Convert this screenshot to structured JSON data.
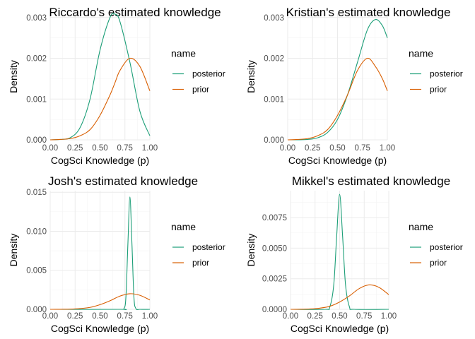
{
  "colors": {
    "posterior": "#1b9e77",
    "prior": "#d95f02"
  },
  "chart_data": [
    {
      "type": "line",
      "title": "Riccardo's estimated knowledge",
      "xlabel": "CogSci Knowledge (p)",
      "ylabel": "Density",
      "xlim": [
        0,
        1
      ],
      "ylim": [
        0,
        0.0031
      ],
      "xticks": [
        0,
        0.25,
        0.5,
        0.75,
        1
      ],
      "xtick_labels": [
        "0.00",
        "0.25",
        "0.50",
        "0.75",
        "1.00"
      ],
      "yticks": [
        0,
        0.001,
        0.002,
        0.003
      ],
      "ytick_labels": [
        "0.000",
        "0.001",
        "0.002",
        "0.003"
      ],
      "grid": true,
      "legend": {
        "title": "name",
        "position": "right",
        "entries": [
          "posterior",
          "prior"
        ]
      },
      "x": [
        0,
        0.1,
        0.2,
        0.3,
        0.4,
        0.5,
        0.6,
        0.65,
        0.7,
        0.8,
        0.9,
        1.0
      ],
      "series": [
        {
          "name": "posterior",
          "values": [
            0,
            1e-05,
            5e-05,
            0.0003,
            0.001,
            0.0022,
            0.003,
            0.00308,
            0.0029,
            0.0019,
            0.0007,
            0.0001
          ]
        },
        {
          "name": "prior",
          "values": [
            0,
            1e-05,
            3e-05,
            0.0001,
            0.00025,
            0.0006,
            0.0011,
            0.0014,
            0.0017,
            0.002,
            0.0018,
            0.0012
          ]
        }
      ]
    },
    {
      "type": "line",
      "title": "Kristian's estimated knowledge",
      "xlabel": "CogSci Knowledge (p)",
      "ylabel": "Density",
      "xlim": [
        0,
        1
      ],
      "ylim": [
        0,
        0.0031
      ],
      "xticks": [
        0,
        0.25,
        0.5,
        0.75,
        1
      ],
      "xtick_labels": [
        "0.00",
        "0.25",
        "0.50",
        "0.75",
        "1.00"
      ],
      "yticks": [
        0,
        0.001,
        0.002,
        0.003
      ],
      "ytick_labels": [
        "0.000",
        "0.001",
        "0.002",
        "0.003"
      ],
      "grid": true,
      "legend": {
        "title": "name",
        "position": "right",
        "entries": [
          "posterior",
          "prior"
        ]
      },
      "x": [
        0,
        0.1,
        0.2,
        0.3,
        0.4,
        0.5,
        0.6,
        0.7,
        0.8,
        0.88,
        0.95,
        1.0
      ],
      "series": [
        {
          "name": "posterior",
          "values": [
            0,
            1e-06,
            1e-05,
            5e-05,
            0.00018,
            0.0005,
            0.0011,
            0.0019,
            0.0027,
            0.00295,
            0.0028,
            0.0025
          ]
        },
        {
          "name": "prior",
          "values": [
            0,
            1e-05,
            3e-05,
            0.0001,
            0.00025,
            0.0006,
            0.0011,
            0.0017,
            0.002,
            0.0018,
            0.0015,
            0.0012
          ]
        }
      ]
    },
    {
      "type": "line",
      "title": "Josh's estimated knowledge",
      "xlabel": "CogSci Knowledge (p)",
      "ylabel": "Density",
      "xlim": [
        0,
        1
      ],
      "ylim": [
        0,
        0.0152
      ],
      "xticks": [
        0,
        0.25,
        0.5,
        0.75,
        1
      ],
      "xtick_labels": [
        "0.00",
        "0.25",
        "0.50",
        "0.75",
        "1.00"
      ],
      "yticks": [
        0,
        0.005,
        0.01,
        0.015
      ],
      "ytick_labels": [
        "0.000",
        "0.005",
        "0.010",
        "0.015"
      ],
      "grid": true,
      "legend": {
        "title": "name",
        "position": "right",
        "entries": [
          "posterior",
          "prior"
        ]
      },
      "x": [
        0,
        0.7,
        0.74,
        0.76,
        0.78,
        0.8,
        0.82,
        0.84,
        0.86,
        0.9,
        1.0
      ],
      "series": [
        {
          "name": "posterior",
          "values": [
            0,
            0,
            0.0001,
            0.0016,
            0.0085,
            0.0144,
            0.0085,
            0.0016,
            0.0001,
            0,
            0
          ]
        },
        {
          "name": "prior",
          "values": [
            0,
            0.0017,
            0.0018,
            0.00185,
            0.0019,
            0.002,
            0.002,
            0.0019,
            0.0019,
            0.0018,
            0.0012
          ]
        }
      ],
      "prior_curve": {
        "x": [
          0,
          0.1,
          0.2,
          0.3,
          0.4,
          0.5,
          0.6,
          0.7,
          0.8,
          0.9,
          1.0
        ],
        "values": [
          0,
          1e-05,
          3e-05,
          0.0001,
          0.00025,
          0.0006,
          0.0011,
          0.0017,
          0.002,
          0.0018,
          0.0012
        ]
      }
    },
    {
      "type": "line",
      "title": "Mikkel's estimated knowledge",
      "xlabel": "CogSci Knowledge (p)",
      "ylabel": "Density",
      "xlim": [
        0,
        1
      ],
      "ylim": [
        0,
        0.0097
      ],
      "xticks": [
        0,
        0.25,
        0.5,
        0.75,
        1
      ],
      "xtick_labels": [
        "0.00",
        "0.25",
        "0.50",
        "0.75",
        "1.00"
      ],
      "yticks": [
        0,
        0.0025,
        0.005,
        0.0075
      ],
      "ytick_labels": [
        "0.0000",
        "0.0025",
        "0.0050",
        "0.0075"
      ],
      "grid": true,
      "legend": {
        "title": "name",
        "position": "right",
        "entries": [
          "posterior",
          "prior"
        ]
      },
      "x": [
        0,
        0.35,
        0.4,
        0.44,
        0.47,
        0.5,
        0.53,
        0.56,
        0.6,
        0.65,
        1.0
      ],
      "series": [
        {
          "name": "posterior",
          "values": [
            0,
            0,
            0.0002,
            0.002,
            0.006,
            0.0094,
            0.006,
            0.002,
            0.0002,
            0,
            0
          ]
        }
      ],
      "prior_curve": {
        "x": [
          0,
          0.1,
          0.2,
          0.3,
          0.4,
          0.5,
          0.6,
          0.7,
          0.8,
          0.9,
          1.0
        ],
        "values": [
          0,
          1e-05,
          3e-05,
          0.0001,
          0.00025,
          0.0006,
          0.0011,
          0.0017,
          0.002,
          0.0018,
          0.0012
        ]
      }
    }
  ]
}
